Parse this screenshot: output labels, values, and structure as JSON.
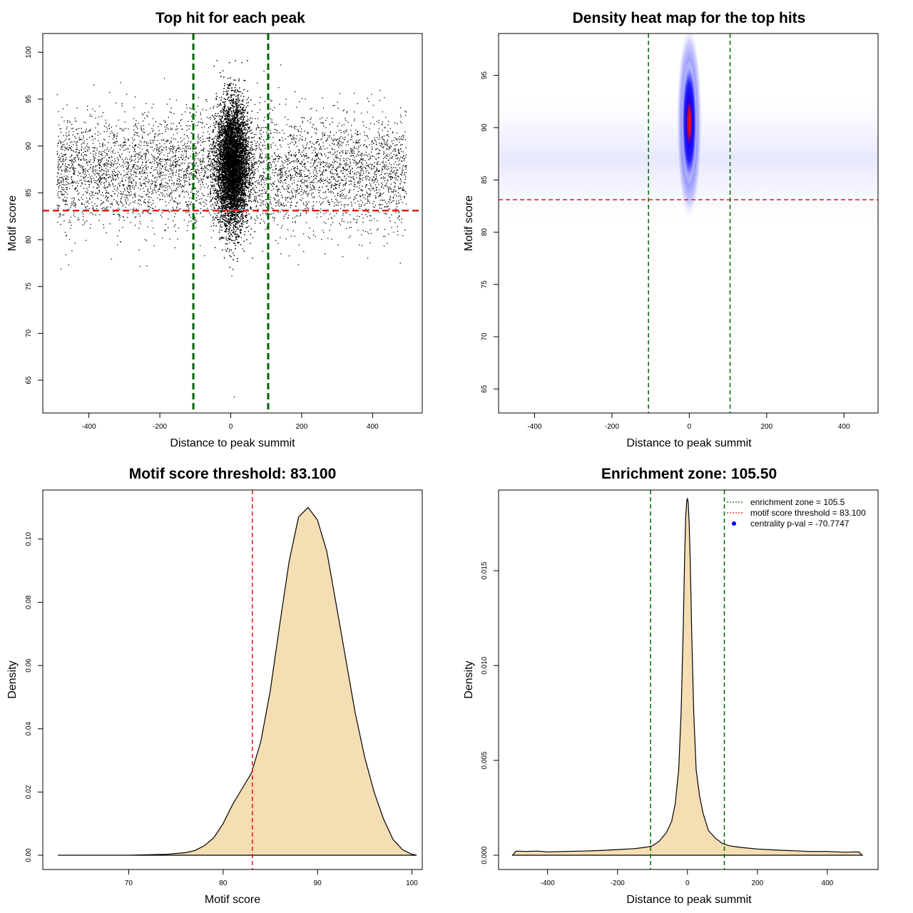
{
  "chart_data": [
    {
      "id": "scatter",
      "type": "scatter",
      "title": "Top hit for each peak",
      "xlabel": "Distance to peak summit",
      "ylabel": "Motif score",
      "xlim": [
        -530,
        540
      ],
      "ylim": [
        61.5,
        102
      ],
      "xticks": [
        -400,
        -200,
        0,
        200,
        400
      ],
      "yticks": [
        65,
        70,
        75,
        80,
        85,
        90,
        95,
        100
      ],
      "background": {
        "x_range": [
          -490,
          495
        ],
        "y_mean": 87.3,
        "y_sd": 3.0,
        "count": 5200
      },
      "central": {
        "x_center": 5,
        "x_sd": 22,
        "y_mean": 88.0,
        "y_sd": 3.3,
        "count": 15000
      },
      "outliers": [
        {
          "x": 10,
          "y": 63.2
        },
        {
          "x": 3,
          "y": 76.1
        },
        {
          "x": -465,
          "y": 78.4
        },
        {
          "x": 478,
          "y": 77.5
        },
        {
          "x": -237,
          "y": 77.2
        }
      ],
      "vlines": [
        -105.5,
        105.5
      ],
      "hline": 83.1,
      "vline_color": "#006400",
      "hline_color": "#e41a1c"
    },
    {
      "id": "heatmap",
      "type": "heatmap",
      "title": "Density heat map for the top hits",
      "xlabel": "Distance to peak summit",
      "ylabel": "Motif score",
      "xlim": [
        -493,
        488
      ],
      "ylim": [
        62.7,
        99.0
      ],
      "xticks": [
        -400,
        -200,
        0,
        200,
        400
      ],
      "yticks": [
        65,
        70,
        75,
        80,
        85,
        90,
        95
      ],
      "hotspot": {
        "x": 0,
        "y": 90.5
      },
      "colors": [
        "#ffffff",
        "#0000ff",
        "#ff0000"
      ],
      "vlines": [
        -105.5,
        105.5
      ],
      "hline": 83.1,
      "vline_color": "#006400",
      "hline_color": "#e41a1c"
    },
    {
      "id": "score-density",
      "type": "area",
      "title": "Motif score threshold: 83.100",
      "xlabel": "Motif score",
      "ylabel": "Density",
      "xlim": [
        60.9,
        101.1
      ],
      "ylim": [
        -0.0045,
        0.1155
      ],
      "xticks": [
        70,
        80,
        90,
        100
      ],
      "yticks": [
        0.0,
        0.02,
        0.04,
        0.06,
        0.08,
        0.1
      ],
      "ytick_labels": [
        "0.00",
        "0.02",
        "0.04",
        "0.06",
        "0.08",
        "0.10"
      ],
      "x": [
        62.5,
        70,
        74,
        76,
        77,
        78,
        79,
        80,
        81,
        82,
        83,
        84,
        85,
        86,
        87,
        88,
        89,
        90,
        91,
        92,
        93,
        94,
        95,
        96,
        97,
        98,
        99,
        100,
        100.5
      ],
      "y": [
        0.0,
        0.0,
        0.0003,
        0.0008,
        0.0015,
        0.003,
        0.0055,
        0.01,
        0.016,
        0.021,
        0.026,
        0.036,
        0.052,
        0.073,
        0.093,
        0.107,
        0.11,
        0.106,
        0.096,
        0.079,
        0.062,
        0.045,
        0.031,
        0.02,
        0.0115,
        0.005,
        0.0018,
        0.0003,
        0.0
      ],
      "fill": "#f5deb3",
      "vline": 83.1,
      "vline_color": "#e41a1c"
    },
    {
      "id": "distance-density",
      "type": "area",
      "title": "Enrichment zone: 105.50",
      "xlabel": "Distance to peak summit",
      "ylabel": "Density",
      "xlim": [
        -540,
        545
      ],
      "ylim": [
        -0.00075,
        0.01925
      ],
      "xticks": [
        -400,
        -200,
        0,
        200,
        400
      ],
      "yticks": [
        0.0,
        0.005,
        0.01,
        0.015
      ],
      "ytick_labels": [
        "0.000",
        "0.005",
        "0.010",
        "0.015"
      ],
      "x": [
        -500,
        -490,
        -460,
        -430,
        -400,
        -350,
        -300,
        -250,
        -200,
        -150,
        -120,
        -100,
        -80,
        -60,
        -45,
        -35,
        -25,
        -18,
        -12,
        -8,
        -5,
        -2,
        0,
        2,
        5,
        8,
        12,
        18,
        25,
        35,
        45,
        60,
        80,
        100,
        120,
        150,
        200,
        250,
        300,
        350,
        400,
        450,
        480,
        490,
        500
      ],
      "y": [
        0.0,
        0.00022,
        0.0002,
        0.00022,
        0.00018,
        0.0002,
        0.00022,
        0.00025,
        0.0003,
        0.00035,
        0.00042,
        0.0005,
        0.00075,
        0.0012,
        0.0018,
        0.0027,
        0.0045,
        0.0075,
        0.012,
        0.0158,
        0.0178,
        0.0187,
        0.0188,
        0.0186,
        0.0175,
        0.0155,
        0.0118,
        0.0075,
        0.0045,
        0.0031,
        0.0022,
        0.0013,
        0.0009,
        0.00062,
        0.0005,
        0.00042,
        0.00033,
        0.00028,
        0.00024,
        0.0002,
        0.0002,
        0.00016,
        0.00018,
        0.00017,
        0.0
      ],
      "fill": "#f5deb3",
      "vlines": [
        -105.5,
        105.5
      ],
      "vline_color": "#006400",
      "legend_position": "top-right",
      "legend": [
        {
          "label": "enrichment zone = 105.5",
          "type": "dotted-line",
          "color": "#006400"
        },
        {
          "label": "motif score threshold = 83.100",
          "type": "dotted-line",
          "color": "#e41a1c"
        },
        {
          "label": "centrality p-val = -70.7747",
          "type": "point",
          "color": "#0000ff"
        }
      ]
    }
  ]
}
